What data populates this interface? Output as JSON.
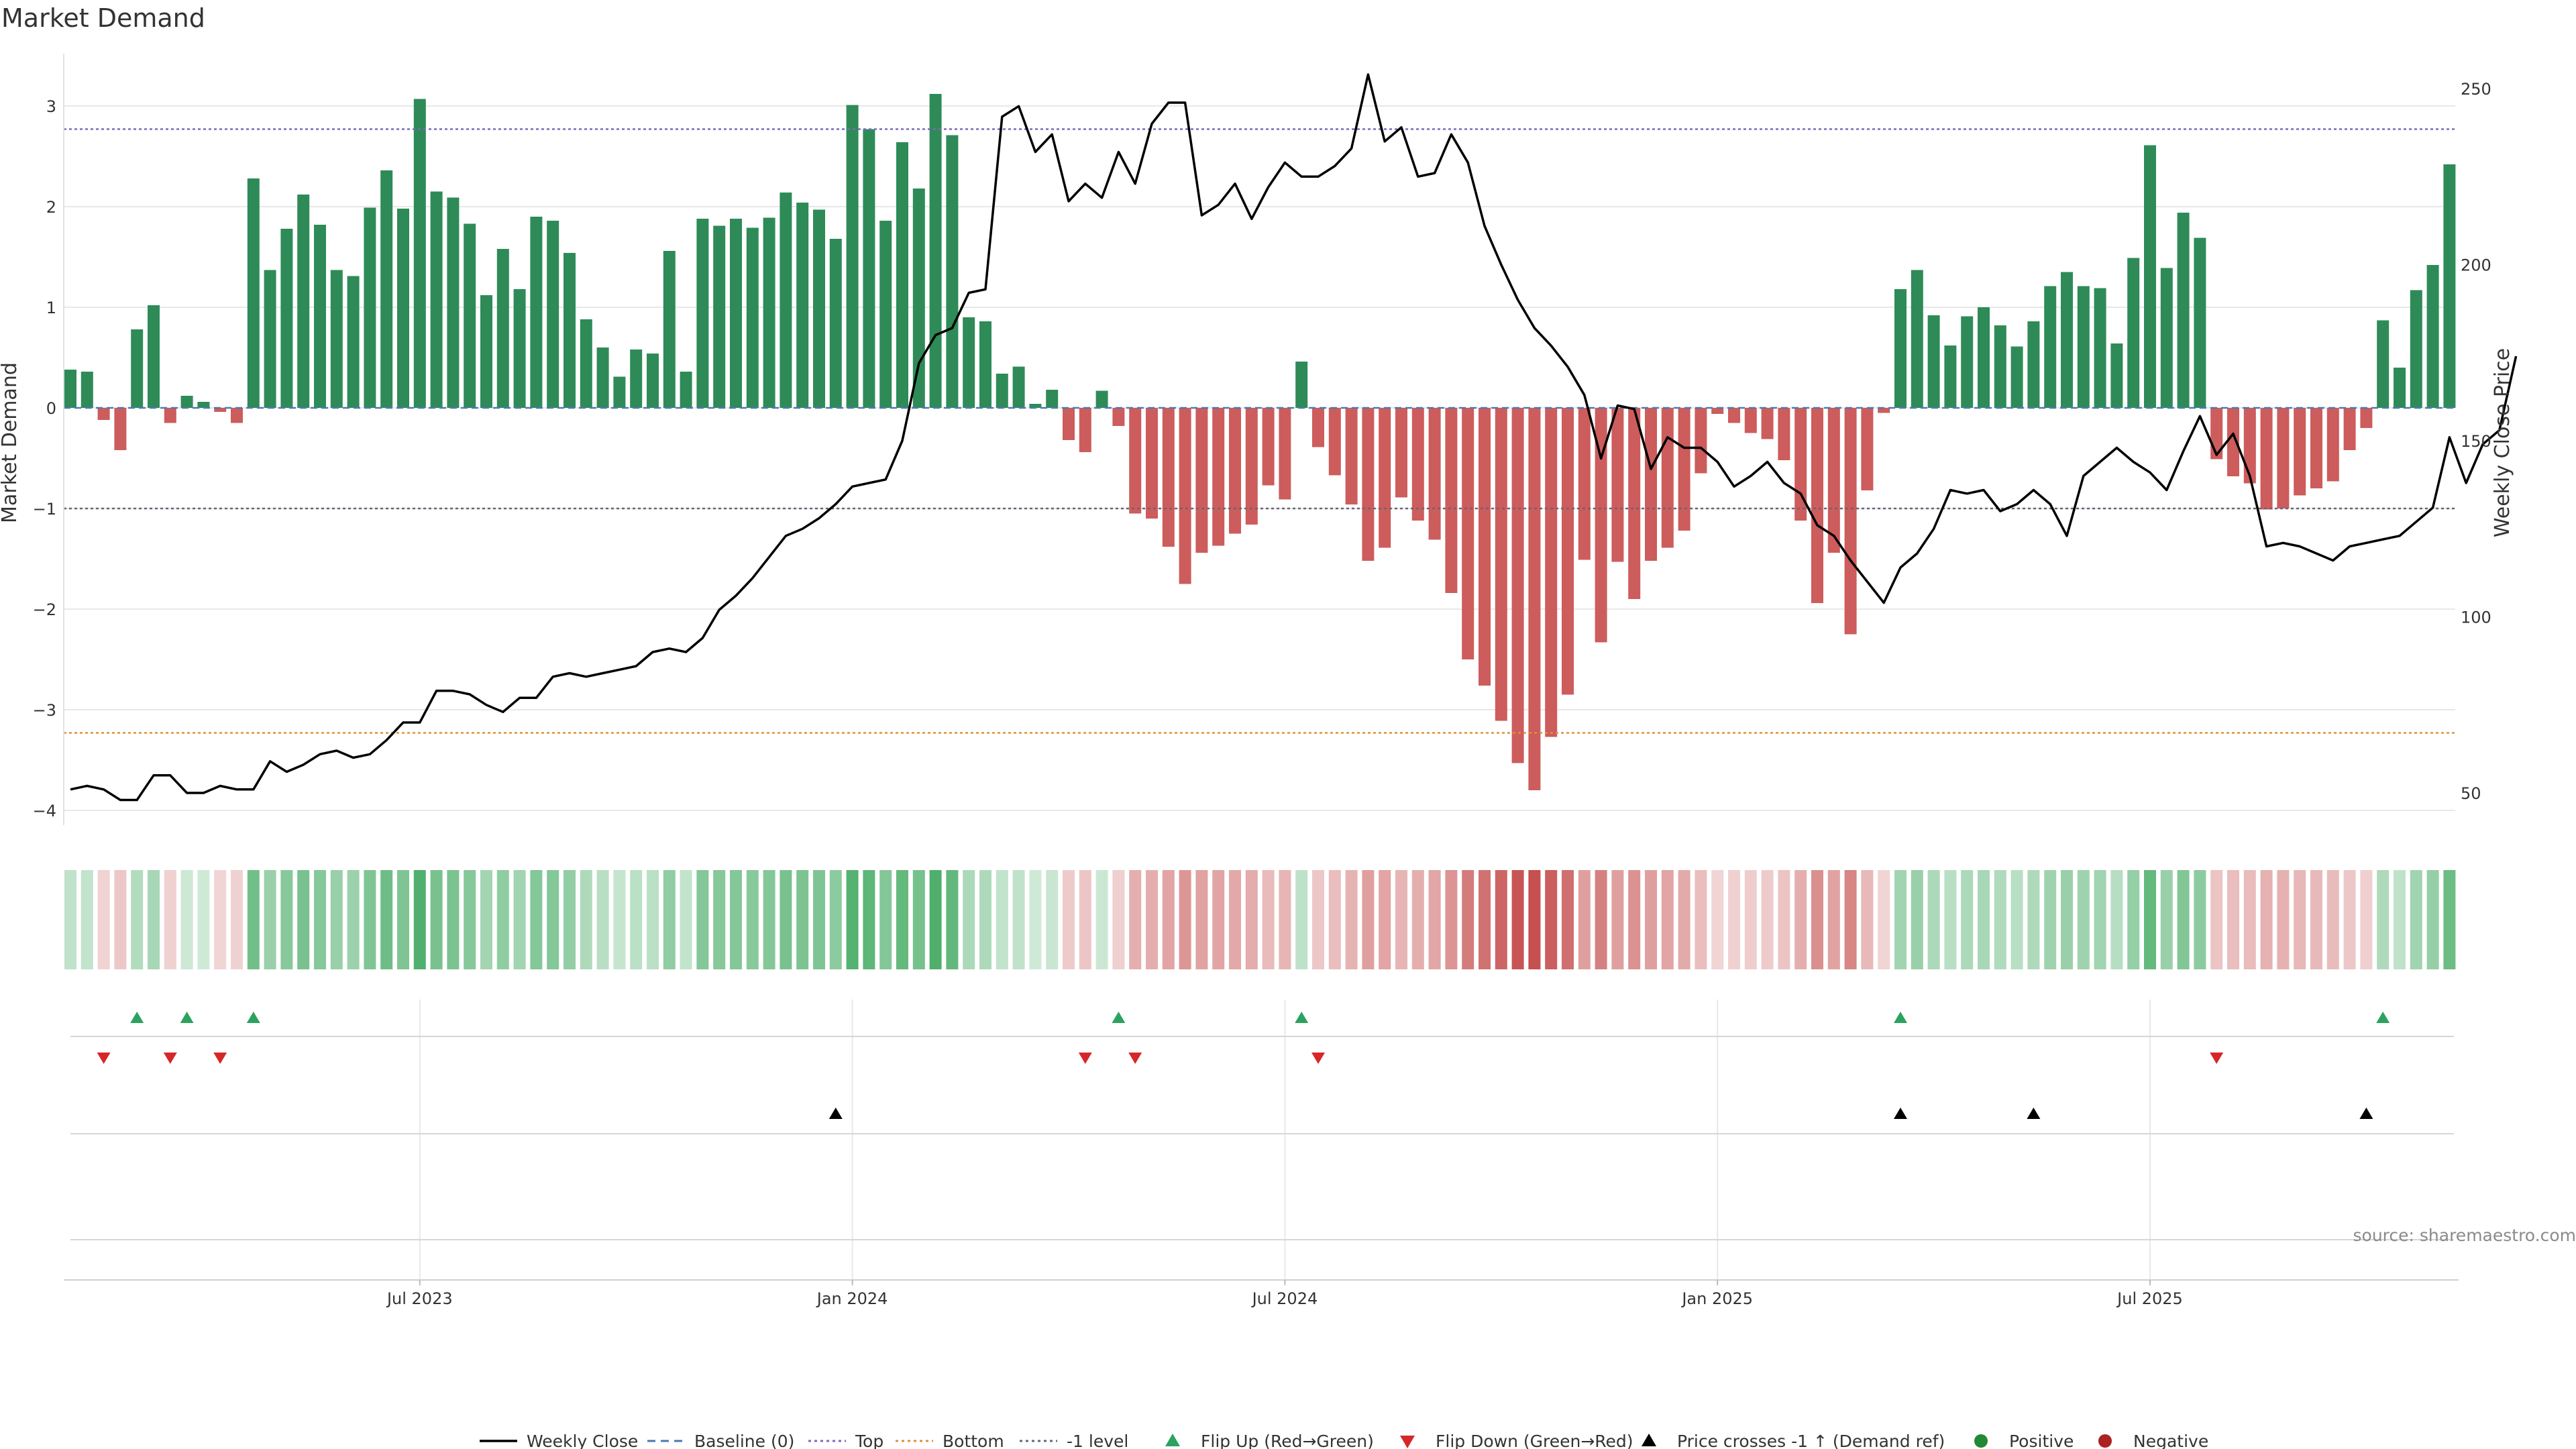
{
  "chart_data": {
    "type": "bar",
    "title": "Market Demand",
    "ylabel_left": "Market Demand",
    "ylabel_right": "Weekly Close Price",
    "source_note": "source: sharemaestro.com",
    "y_left_ticks": [
      "3",
      "2",
      "1",
      "0",
      "−1",
      "−2",
      "−3",
      "−4"
    ],
    "y_left_range": [
      -4.0,
      3.3
    ],
    "y_right_ticks": [
      "250",
      "200",
      "150",
      "100",
      "50"
    ],
    "y_right_range": [
      45,
      255
    ],
    "x_ticks": [
      "Jul 2023",
      "Jan 2024",
      "Jul 2024",
      "Jan 2025",
      "Jul 2025"
    ],
    "x_tick_weeks": [
      21,
      47,
      73,
      99,
      125
    ],
    "reference_lines": {
      "top": 2.77,
      "bottom": -3.23,
      "minus_one": -1.0,
      "baseline": 0
    },
    "demand": [
      0.38,
      0.36,
      -0.12,
      -0.42,
      0.78,
      1.02,
      -0.15,
      0.12,
      0.06,
      -0.04,
      -0.15,
      2.28,
      1.37,
      1.78,
      2.12,
      1.82,
      1.37,
      1.31,
      1.99,
      2.36,
      1.98,
      3.07,
      2.15,
      2.09,
      1.83,
      1.12,
      1.58,
      1.18,
      1.9,
      1.86,
      1.54,
      0.88,
      0.6,
      0.31,
      0.58,
      0.54,
      1.56,
      0.36,
      1.88,
      1.81,
      1.88,
      1.79,
      1.89,
      2.14,
      2.04,
      1.97,
      1.68,
      3.01,
      2.77,
      1.86,
      2.64,
      2.18,
      3.12,
      2.71,
      0.9,
      0.86,
      0.34,
      0.41,
      0.04,
      0.18,
      -0.32,
      -0.44,
      0.17,
      -0.18,
      -1.05,
      -1.1,
      -1.38,
      -1.75,
      -1.44,
      -1.37,
      -1.25,
      -1.16,
      -0.77,
      -0.91,
      0.46,
      -0.39,
      -0.67,
      -0.96,
      -1.52,
      -1.39,
      -0.89,
      -1.12,
      -1.31,
      -1.84,
      -2.5,
      -2.76,
      -3.11,
      -3.53,
      -3.8,
      -3.27,
      -2.85,
      -1.51,
      -2.33,
      -1.53,
      -1.9,
      -1.52,
      -1.39,
      -1.22,
      -0.65,
      -0.06,
      -0.15,
      -0.25,
      -0.31,
      -0.52,
      -1.12,
      -1.94,
      -1.44,
      -2.25,
      -0.82,
      -0.05,
      1.18,
      1.37,
      0.92,
      0.62,
      0.91,
      1.0,
      0.82,
      0.61,
      0.86,
      1.21,
      1.35,
      1.21,
      1.19,
      0.64,
      1.49,
      2.61,
      1.39,
      1.94,
      1.69,
      -0.51,
      -0.68,
      -0.75,
      -1.01,
      -1.0,
      -0.87,
      -0.8,
      -0.73,
      -0.42,
      -0.2,
      0.87,
      0.4,
      1.17,
      1.42,
      2.42
    ],
    "weekly_close": [
      51,
      52,
      51,
      48,
      48,
      55,
      55,
      50,
      50,
      52,
      51,
      51,
      59,
      56,
      58,
      61,
      62,
      60,
      61,
      65,
      70,
      70,
      79,
      79,
      78,
      75,
      73,
      77,
      77,
      83,
      84,
      83,
      84,
      85,
      86,
      90,
      91,
      90,
      94,
      102,
      106,
      111,
      117,
      123,
      125,
      128,
      132,
      137,
      138,
      139,
      150,
      172,
      180,
      182,
      192,
      193,
      242,
      245,
      232,
      237,
      218,
      223,
      219,
      232,
      223,
      240,
      246,
      246,
      214,
      217,
      223,
      213,
      222,
      229,
      225,
      225,
      228,
      233,
      254,
      235,
      239,
      225,
      226,
      237,
      229,
      211,
      200,
      190,
      182,
      177,
      171,
      163,
      145,
      160,
      159,
      142,
      151,
      148,
      148,
      144,
      137,
      140,
      144,
      138,
      135,
      126,
      123,
      116,
      110,
      104,
      114,
      118,
      125,
      136,
      135,
      136,
      130,
      132,
      136,
      132,
      123,
      140,
      144,
      148,
      144,
      141,
      136,
      147,
      157,
      146,
      152,
      140,
      120,
      121,
      120,
      118,
      116,
      120,
      121,
      122,
      123,
      127,
      131,
      151,
      138,
      149,
      153,
      174
    ]
  },
  "markers": {
    "flip_up_weeks": [
      4,
      7,
      11,
      63,
      74,
      110,
      139
    ],
    "flip_down_weeks": [
      2,
      6,
      9,
      61,
      64,
      75,
      129
    ],
    "price_cross_weeks": [
      46,
      110,
      118,
      138
    ]
  },
  "legend": {
    "items": [
      {
        "label": "Weekly Close",
        "kind": "line",
        "color": "#000000"
      },
      {
        "label": "Baseline (0)",
        "kind": "dash",
        "color": "#4a7ab0"
      },
      {
        "label": "Top",
        "kind": "dot",
        "color": "#7b6bbd"
      },
      {
        "label": "Bottom",
        "kind": "dot",
        "color": "#e0903a"
      },
      {
        "label": "-1 level",
        "kind": "dot",
        "color": "#666677"
      },
      {
        "label": "Flip Up (Red→Green)",
        "kind": "tri-up",
        "color": "#2ca25f"
      },
      {
        "label": "Flip Down (Green→Red)",
        "kind": "tri-down",
        "color": "#d62728"
      },
      {
        "label": "Price crosses -1 ↑ (Demand ref)",
        "kind": "tri-up",
        "color": "#000000"
      },
      {
        "label": "Positive",
        "kind": "circle",
        "color": "#228833"
      },
      {
        "label": "Negative",
        "kind": "circle",
        "color": "#aa2222"
      }
    ]
  },
  "colors": {
    "positive_bar": "#2e8b57",
    "negative_bar": "#cd5c5c",
    "price_line": "#000000",
    "flip_up": "#2ca25f",
    "flip_down": "#d62728",
    "grid": "#e8e8e8"
  }
}
